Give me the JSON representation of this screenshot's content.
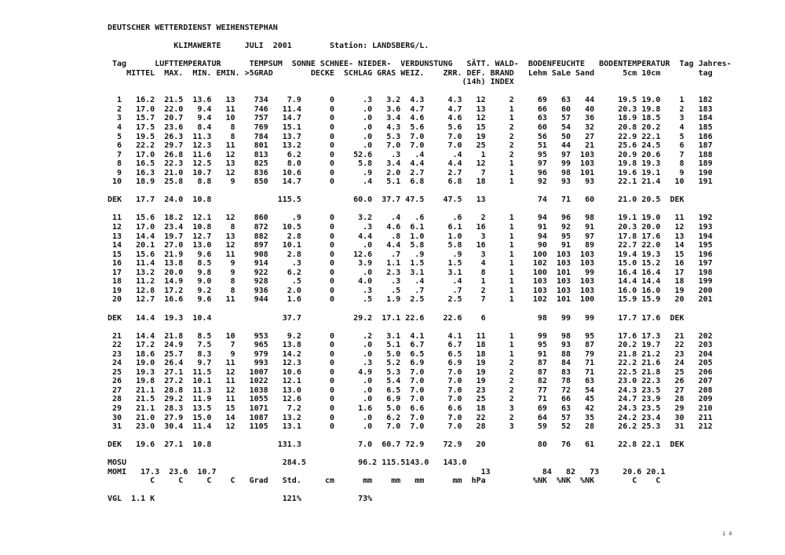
{
  "page": {
    "title": "DEUTSCHER WETTERDIENST WEIHENSTEPHAN",
    "subtitle": {
      "label": "KLIMAWERTE",
      "period": "JULI  2001",
      "station": "Station: LANDSBERG/L."
    },
    "page_mark": "14"
  },
  "table": {
    "column_names": [
      "Tag",
      "LUFTTEMPERATUR MITTEL",
      "LUFTTEMPERATUR MAX.",
      "LUFTTEMPERATUR MIN.",
      "LUFTTEMPERATUR EMIN.",
      "TEMPSUM >5GRAD",
      "SONNE",
      "SCHNEE-DECKE",
      "NIEDER-SCHLAG",
      "VERDUNSTUNG GRAS",
      "VERDUNSTUNG WEIZ.",
      "VERDUNSTUNG ZRR.",
      "SAETT. DEF. (14h)",
      "WALD-BRAND INDEX",
      "BODENFEUCHTE Lehm",
      "BODENFEUCHTE SaLe",
      "BODENFEUCHTE Sand",
      "BODENTEMPERATUR 5cm",
      "BODENTEMPERATUR 10cm",
      "Tag",
      "Jahres-tag"
    ],
    "widths": [
      3,
      7,
      6,
      6,
      5,
      7,
      7,
      7,
      8,
      6,
      5,
      8,
      5,
      6,
      7,
      5,
      5,
      9,
      5,
      5,
      6
    ],
    "header_lines": [
      " Tag      LUFTTEMPERATUR      TEMPSUM  SONNE SCHNEE- NIEDER-  VERDUNSTUNG   SÄTT. WALD-  BODENFEUCHTE   BODENTEMPERATUR  Tag Jahres-",
      "    MITTEL  MAX.  MIN. EMIN. >5GRAD        DECKE  SCHLAG GRAS WEIZ.    ZRR. DEF. BRAND   Lehm SaLe Sand      5cm 10cm        tag",
      "                                                                           (14h) INDEX"
    ],
    "sections": [
      {
        "rows": [
          [
            "1",
            "16.2",
            "21.5",
            "13.6",
            "13",
            "734",
            "7.9",
            "0",
            ".3",
            "3.2",
            "4.3",
            "4.3",
            "12",
            "2",
            "69",
            "63",
            "44",
            "19.5",
            "19.0",
            "1",
            "182"
          ],
          [
            "2",
            "17.0",
            "22.0",
            "9.4",
            "11",
            "746",
            "11.4",
            "0",
            ".0",
            "3.6",
            "4.7",
            "4.7",
            "13",
            "1",
            "66",
            "60",
            "40",
            "20.3",
            "19.8",
            "2",
            "183"
          ],
          [
            "3",
            "15.7",
            "20.7",
            "9.4",
            "10",
            "757",
            "14.7",
            "0",
            ".0",
            "3.4",
            "4.6",
            "4.6",
            "12",
            "1",
            "63",
            "57",
            "36",
            "18.9",
            "18.5",
            "3",
            "184"
          ],
          [
            "4",
            "17.5",
            "23.6",
            "8.4",
            "8",
            "769",
            "15.1",
            "0",
            ".0",
            "4.3",
            "5.6",
            "5.6",
            "15",
            "2",
            "60",
            "54",
            "32",
            "20.8",
            "20.2",
            "4",
            "185"
          ],
          [
            "5",
            "19.5",
            "26.3",
            "11.3",
            "8",
            "784",
            "13.7",
            "0",
            ".0",
            "5.3",
            "7.0",
            "7.0",
            "19",
            "2",
            "56",
            "50",
            "27",
            "22.9",
            "22.1",
            "5",
            "186"
          ],
          [
            "6",
            "22.2",
            "29.7",
            "12.3",
            "11",
            "801",
            "13.2",
            "0",
            ".0",
            "7.0",
            "7.0",
            "7.0",
            "25",
            "2",
            "51",
            "44",
            "21",
            "25.6",
            "24.5",
            "6",
            "187"
          ],
          [
            "7",
            "17.0",
            "26.8",
            "11.6",
            "12",
            "813",
            "6.2",
            "0",
            "52.6",
            ".3",
            ".4",
            ".4",
            "1",
            "2",
            "95",
            "97",
            "103",
            "20.9",
            "20.6",
            "7",
            "188"
          ],
          [
            "8",
            "16.5",
            "22.3",
            "12.5",
            "13",
            "825",
            "8.0",
            "0",
            "5.8",
            "3.4",
            "4.4",
            "4.4",
            "12",
            "1",
            "97",
            "99",
            "103",
            "19.8",
            "19.3",
            "8",
            "189"
          ],
          [
            "9",
            "16.3",
            "21.0",
            "10.7",
            "12",
            "836",
            "10.6",
            "0",
            ".9",
            "2.0",
            "2.7",
            "2.7",
            "7",
            "1",
            "96",
            "98",
            "101",
            "19.6",
            "19.1",
            "9",
            "190"
          ],
          [
            "10",
            "18.9",
            "25.8",
            "8.8",
            "9",
            "850",
            "14.7",
            "0",
            ".4",
            "5.1",
            "6.8",
            "6.8",
            "18",
            "1",
            "92",
            "93",
            "93",
            "22.1",
            "21.4",
            "10",
            "191"
          ]
        ],
        "summary": [
          "DEK",
          "17.7",
          "24.0",
          "10.8",
          "",
          "",
          "115.5",
          "",
          "60.0",
          "37.7",
          "47.5",
          "47.5",
          "13",
          "",
          "74",
          "71",
          "60",
          "21.0",
          "20.5",
          "DEK",
          ""
        ]
      },
      {
        "rows": [
          [
            "11",
            "15.6",
            "18.2",
            "12.1",
            "12",
            "860",
            ".9",
            "0",
            "3.2",
            ".4",
            ".6",
            ".6",
            "2",
            "1",
            "94",
            "96",
            "98",
            "19.1",
            "19.0",
            "11",
            "192"
          ],
          [
            "12",
            "17.0",
            "23.4",
            "10.8",
            "8",
            "872",
            "10.5",
            "0",
            ".3",
            "4.6",
            "6.1",
            "6.1",
            "16",
            "1",
            "91",
            "92",
            "91",
            "20.3",
            "20.0",
            "12",
            "193"
          ],
          [
            "13",
            "14.4",
            "19.7",
            "12.7",
            "13",
            "882",
            "2.8",
            "0",
            "4.4",
            ".8",
            "1.0",
            "1.0",
            "3",
            "1",
            "94",
            "95",
            "97",
            "17.8",
            "17.6",
            "13",
            "194"
          ],
          [
            "14",
            "20.1",
            "27.0",
            "13.0",
            "12",
            "897",
            "10.1",
            "0",
            ".0",
            "4.4",
            "5.8",
            "5.8",
            "16",
            "1",
            "90",
            "91",
            "89",
            "22.7",
            "22.0",
            "14",
            "195"
          ],
          [
            "15",
            "15.6",
            "21.9",
            "9.6",
            "11",
            "908",
            "2.8",
            "0",
            "12.6",
            ".7",
            ".9",
            ".9",
            "3",
            "1",
            "100",
            "103",
            "103",
            "19.4",
            "19.3",
            "15",
            "196"
          ],
          [
            "16",
            "11.4",
            "13.8",
            "8.5",
            "9",
            "914",
            ".3",
            "0",
            "3.9",
            "1.1",
            "1.5",
            "1.5",
            "4",
            "1",
            "102",
            "103",
            "103",
            "15.0",
            "15.2",
            "16",
            "197"
          ],
          [
            "17",
            "13.2",
            "20.0",
            "9.8",
            "9",
            "922",
            "6.2",
            "0",
            ".0",
            "2.3",
            "3.1",
            "3.1",
            "8",
            "1",
            "100",
            "101",
            "99",
            "16.4",
            "16.4",
            "17",
            "198"
          ],
          [
            "18",
            "11.2",
            "14.9",
            "9.0",
            "8",
            "928",
            ".5",
            "0",
            "4.0",
            ".3",
            ".4",
            ".4",
            "1",
            "1",
            "103",
            "103",
            "103",
            "14.4",
            "14.4",
            "18",
            "199"
          ],
          [
            "19",
            "12.8",
            "17.2",
            "9.2",
            "8",
            "936",
            "2.0",
            "0",
            ".3",
            ".5",
            ".7",
            ".7",
            "2",
            "1",
            "103",
            "103",
            "103",
            "16.0",
            "16.0",
            "19",
            "200"
          ],
          [
            "20",
            "12.7",
            "16.6",
            "9.6",
            "11",
            "944",
            "1.6",
            "0",
            ".5",
            "1.9",
            "2.5",
            "2.5",
            "7",
            "1",
            "102",
            "101",
            "100",
            "15.9",
            "15.9",
            "20",
            "201"
          ]
        ],
        "summary": [
          "DEK",
          "14.4",
          "19.3",
          "10.4",
          "",
          "",
          "37.7",
          "",
          "29.2",
          "17.1",
          "22.6",
          "22.6",
          "6",
          "",
          "98",
          "99",
          "99",
          "17.7",
          "17.6",
          "DEK",
          ""
        ]
      },
      {
        "rows": [
          [
            "21",
            "14.4",
            "21.8",
            "8.5",
            "10",
            "953",
            "9.2",
            "0",
            ".2",
            "3.1",
            "4.1",
            "4.1",
            "11",
            "1",
            "99",
            "98",
            "95",
            "17.6",
            "17.3",
            "21",
            "202"
          ],
          [
            "22",
            "17.2",
            "24.9",
            "7.5",
            "7",
            "965",
            "13.8",
            "0",
            ".0",
            "5.1",
            "6.7",
            "6.7",
            "18",
            "1",
            "95",
            "93",
            "87",
            "20.2",
            "19.7",
            "22",
            "203"
          ],
          [
            "23",
            "18.6",
            "25.7",
            "8.3",
            "9",
            "979",
            "14.2",
            "0",
            ".0",
            "5.0",
            "6.5",
            "6.5",
            "18",
            "1",
            "91",
            "88",
            "79",
            "21.8",
            "21.2",
            "23",
            "204"
          ],
          [
            "24",
            "19.0",
            "26.4",
            "9.7",
            "11",
            "993",
            "12.3",
            "0",
            ".3",
            "5.2",
            "6.9",
            "6.9",
            "19",
            "2",
            "87",
            "84",
            "71",
            "22.2",
            "21.6",
            "24",
            "205"
          ],
          [
            "25",
            "19.3",
            "27.1",
            "11.5",
            "12",
            "1007",
            "10.6",
            "0",
            "4.9",
            "5.3",
            "7.0",
            "7.0",
            "19",
            "2",
            "87",
            "83",
            "71",
            "22.5",
            "21.8",
            "25",
            "206"
          ],
          [
            "26",
            "19.8",
            "27.2",
            "10.1",
            "11",
            "1022",
            "12.1",
            "0",
            ".0",
            "5.4",
            "7.0",
            "7.0",
            "19",
            "2",
            "82",
            "78",
            "63",
            "23.0",
            "22.3",
            "26",
            "207"
          ],
          [
            "27",
            "21.1",
            "28.8",
            "11.3",
            "12",
            "1038",
            "13.0",
            "0",
            ".0",
            "6.5",
            "7.0",
            "7.0",
            "23",
            "2",
            "77",
            "72",
            "54",
            "24.3",
            "23.5",
            "27",
            "208"
          ],
          [
            "28",
            "21.5",
            "29.2",
            "11.9",
            "11",
            "1055",
            "12.6",
            "0",
            ".0",
            "6.9",
            "7.0",
            "7.0",
            "25",
            "2",
            "71",
            "66",
            "45",
            "24.7",
            "23.9",
            "28",
            "209"
          ],
          [
            "29",
            "21.1",
            "28.3",
            "13.5",
            "15",
            "1071",
            "7.2",
            "0",
            "1.6",
            "5.0",
            "6.6",
            "6.6",
            "18",
            "3",
            "69",
            "63",
            "42",
            "24.3",
            "23.5",
            "29",
            "210"
          ],
          [
            "30",
            "21.0",
            "27.9",
            "15.0",
            "14",
            "1087",
            "13.2",
            "0",
            ".0",
            "6.2",
            "7.0",
            "7.0",
            "22",
            "2",
            "64",
            "57",
            "35",
            "24.2",
            "23.4",
            "30",
            "211"
          ],
          [
            "31",
            "23.0",
            "30.4",
            "11.4",
            "12",
            "1105",
            "13.1",
            "0",
            ".0",
            "7.0",
            "7.0",
            "7.0",
            "28",
            "3",
            "59",
            "52",
            "28",
            "26.2",
            "25.3",
            "31",
            "212"
          ]
        ],
        "summary": [
          "DEK",
          "19.6",
          "27.1",
          "10.8",
          "",
          "",
          "131.3",
          "",
          "7.0",
          "60.7",
          "72.9",
          "72.9",
          "20",
          "",
          "80",
          "76",
          "61",
          "22.8",
          "22.1",
          "DEK",
          ""
        ]
      }
    ],
    "footer": {
      "monthly_sum": [
        "MOSU",
        "",
        "",
        "",
        "",
        "",
        "284.5",
        "",
        "96.2",
        "115.5",
        "143.0",
        "143.0",
        "",
        "",
        "",
        "",
        "",
        "",
        "",
        "",
        ""
      ],
      "monthly_mean": [
        "MOMI",
        "17.3",
        "23.6",
        "10.7",
        "",
        "",
        "",
        "",
        "",
        "",
        "",
        "",
        "13",
        "",
        "84",
        "82",
        "73",
        "20.6",
        "20.1",
        "",
        ""
      ],
      "units": [
        "",
        "C",
        "C",
        "C",
        "C",
        "Grad",
        "Std.",
        "cm",
        "mm",
        "mm",
        "mm",
        "mm",
        "hPa",
        "",
        "%NK",
        "%NK",
        "%NK",
        "C",
        "C",
        "",
        ""
      ],
      "comparison": [
        "VGL",
        "1.1 K",
        "",
        "",
        "",
        "",
        "121%",
        "",
        "73%",
        "",
        "",
        "",
        "",
        "",
        "",
        "",
        "",
        "",
        "",
        "",
        ""
      ]
    }
  }
}
